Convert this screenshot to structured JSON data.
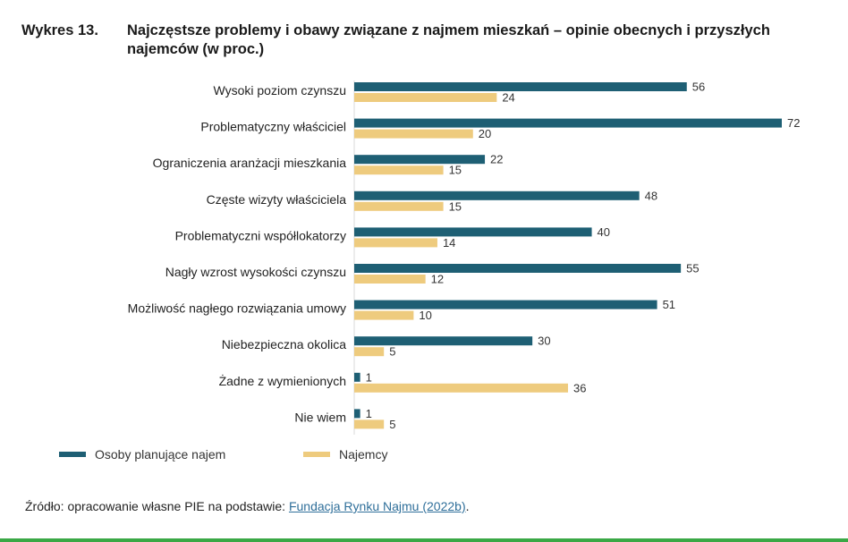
{
  "title": {
    "number": "Wykres 13.",
    "text": "Najczęstsze problemy i obawy związane z najmem mieszkań – opinie obecnych i przyszłych najemców (w proc.)"
  },
  "colors": {
    "series1": "#1e5f74",
    "series2": "#eecb7e"
  },
  "chart_data": {
    "type": "bar",
    "orientation": "horizontal",
    "categories": [
      "Wysoki poziom czynszu",
      "Problematyczny właściciel",
      "Ograniczenia aranżacji mieszkania",
      "Częste wizyty właściciela",
      "Problematyczni współlokatorzy",
      "Nagły wzrost wysokości czynszu",
      "Możliwość nagłego rozwiązania umowy",
      "Niebezpieczna okolica",
      "Żadne z wymienionych",
      "Nie wiem"
    ],
    "series": [
      {
        "name": "Osoby planujące najem",
        "color": "#1e5f74",
        "values": [
          56,
          72,
          22,
          48,
          40,
          55,
          51,
          30,
          1,
          1
        ]
      },
      {
        "name": "Najemcy",
        "color": "#eecb7e",
        "values": [
          24,
          20,
          15,
          15,
          14,
          12,
          10,
          5,
          36,
          5
        ]
      }
    ],
    "xlim": [
      0,
      72
    ],
    "legend_position": "bottom-left",
    "grid": false
  },
  "legend": {
    "s1": "Osoby planujące najem",
    "s2": "Najemcy"
  },
  "source": {
    "prefix": "Źródło: opracowanie własne PIE na podstawie: ",
    "link": "Fundacja Rynku Najmu (2022b)",
    "suffix": "."
  }
}
